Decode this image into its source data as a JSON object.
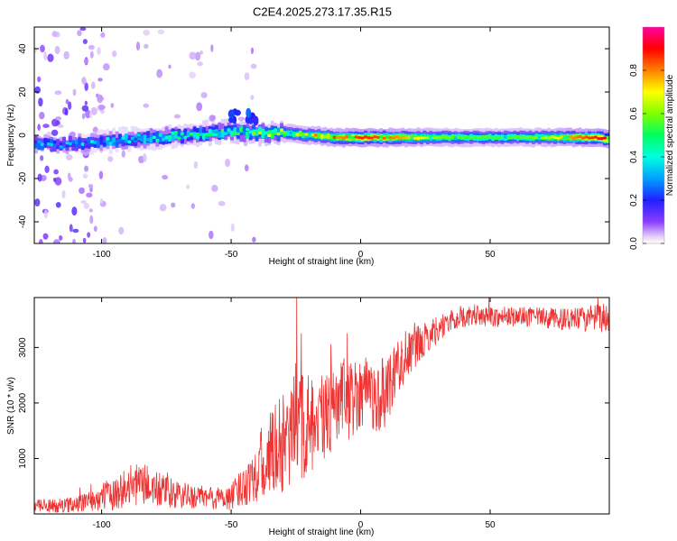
{
  "figure_title": "C2E4.2025.273.17.35.R15",
  "chart_data": [
    {
      "type": "heatmap",
      "title": "C2E4.2025.273.17.35.R15",
      "xlabel": "Height of straight line (km)",
      "ylabel": "Frequency (Hz)",
      "xlim": [
        -126,
        96
      ],
      "ylim": [
        -50,
        50
      ],
      "xticks": [
        -100,
        -50,
        0,
        50
      ],
      "xtick_labels": [
        "-100",
        "-50",
        "0",
        "50"
      ],
      "yticks": [
        -40,
        -20,
        0,
        20,
        40
      ],
      "ytick_labels": [
        "-40",
        "-20",
        "0",
        "20",
        "40"
      ],
      "colorbar": {
        "label": "Normalized spectral amplitude",
        "range": [
          0,
          1
        ],
        "ticks": [
          0,
          0.2,
          0.4,
          0.6,
          0.8
        ],
        "tick_labels": [
          "0.0",
          "0.2",
          "0.4",
          "0.6",
          "0.8"
        ],
        "colormap": "rainbow (white-violet-blue-cyan-green-yellow-red-magenta)"
      },
      "ridge": {
        "x": [
          -126,
          -110,
          -100,
          -90,
          -80,
          -70,
          -60,
          -50,
          -40,
          -30,
          -20,
          -10,
          0,
          10,
          20,
          30,
          40,
          50,
          60,
          70,
          80,
          90,
          96
        ],
        "center_freq": [
          -4,
          -4,
          -3,
          -2,
          -1,
          0,
          1,
          2,
          1,
          1,
          0,
          -1,
          -1,
          -1,
          -1,
          -1,
          -1,
          -1,
          -1,
          -1,
          -1,
          -1,
          -2
        ],
        "amplitude": [
          0.28,
          0.3,
          0.33,
          0.38,
          0.4,
          0.42,
          0.46,
          0.5,
          0.54,
          0.56,
          0.62,
          0.78,
          0.88,
          0.82,
          0.72,
          0.6,
          0.56,
          0.55,
          0.56,
          0.62,
          0.78,
          0.88,
          0.92
        ]
      }
    },
    {
      "type": "line",
      "title": "",
      "xlabel": "Height of straight line (km)",
      "ylabel": "SNR (10 * v/v)",
      "xlim": [
        -126,
        96
      ],
      "ylim": [
        0,
        3900
      ],
      "xticks": [
        -100,
        -50,
        0,
        50
      ],
      "xtick_labels": [
        "-100",
        "-50",
        "0",
        "50"
      ],
      "yticks": [
        1000,
        2000,
        3000
      ],
      "ytick_labels": [
        "1000",
        "2000",
        "3000"
      ],
      "color": "#ee3333",
      "series": [
        {
          "name": "SNR",
          "x": [
            -126,
            -120,
            -115,
            -110,
            -105,
            -100,
            -95,
            -90,
            -85,
            -80,
            -75,
            -70,
            -65,
            -60,
            -55,
            -50,
            -45,
            -42,
            -40,
            -37,
            -35,
            -32,
            -30,
            -27,
            -25,
            -22,
            -20,
            -18,
            -15,
            -12,
            -10,
            -7,
            -5,
            -2,
            0,
            3,
            5,
            8,
            10,
            12,
            15,
            20,
            25,
            30,
            35,
            40,
            45,
            50,
            55,
            60,
            65,
            70,
            75,
            80,
            85,
            90,
            96
          ],
          "y": [
            150,
            140,
            150,
            180,
            230,
            300,
            370,
            480,
            560,
            460,
            380,
            330,
            310,
            300,
            280,
            300,
            520,
            700,
            760,
            980,
            1050,
            1180,
            1300,
            1200,
            1750,
            1550,
            1650,
            1450,
            1600,
            1900,
            1850,
            2050,
            2000,
            2150,
            2200,
            2350,
            2050,
            2150,
            2200,
            2500,
            2700,
            2950,
            3150,
            3350,
            3480,
            3550,
            3560,
            3560,
            3540,
            3560,
            3550,
            3540,
            3520,
            3500,
            3510,
            3520,
            3550
          ],
          "noise_amplitude": [
            130,
            130,
            130,
            140,
            180,
            260,
            300,
            380,
            380,
            360,
            300,
            260,
            220,
            220,
            220,
            240,
            380,
            500,
            560,
            700,
            760,
            860,
            980,
            880,
            1150,
            1000,
            1000,
            850,
            900,
            850,
            850,
            750,
            700,
            700,
            650,
            600,
            650,
            650,
            650,
            600,
            500,
            400,
            300,
            250,
            200,
            180,
            180,
            180,
            180,
            180,
            180,
            180,
            200,
            200,
            220,
            250,
            300
          ]
        }
      ]
    }
  ]
}
